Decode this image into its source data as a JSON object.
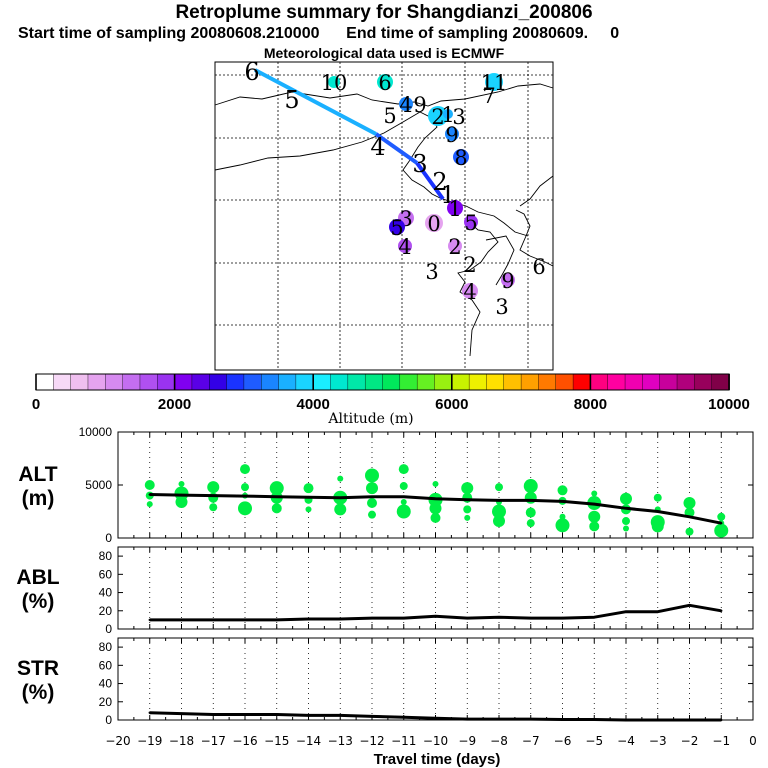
{
  "header": {
    "title": "Retroplume summary for Shangdianzi_200806",
    "start_label": "Start time of sampling 20080608.210000",
    "end_label": "End time of sampling 20080609.",
    "end_suffix": "0",
    "met_label": "Meteorological data used is ECMWF"
  },
  "colorbar": {
    "label": "Altitude (m)",
    "ticks": [
      "0",
      "2000",
      "4000",
      "6000",
      "8000",
      "10000"
    ],
    "colors": [
      "#ffffff",
      "#f7d9f7",
      "#efbfef",
      "#e5a3ef",
      "#d68af0",
      "#c46ef0",
      "#b050f0",
      "#9a33f0",
      "#8000f0",
      "#5a00e6",
      "#3300e6",
      "#1a33ff",
      "#1f5cff",
      "#1a85ff",
      "#1ab0ff",
      "#1ad4ff",
      "#1aeeff",
      "#00e8d0",
      "#00e8a8",
      "#00e884",
      "#00e85c",
      "#33ee33",
      "#66f022",
      "#99f011",
      "#c8f200",
      "#eef000",
      "#ffe000",
      "#ffc000",
      "#ffa000",
      "#ff7a00",
      "#ff5000",
      "#ff0000",
      "#ff0080",
      "#ff00a0",
      "#f000b0",
      "#e000c0",
      "#c8009c",
      "#b0007c",
      "#98005c",
      "#800048"
    ]
  },
  "map": {
    "trajectory_labels": [
      "5",
      "4",
      "3",
      "2",
      "1",
      "6"
    ],
    "cluster_labels": [
      {
        "t": "10",
        "c": "#00e8d0"
      },
      {
        "t": "6",
        "c": "#00e8d0"
      },
      {
        "t": "11",
        "c": "#1ad4ff"
      },
      {
        "t": "4",
        "c": "#1a85ff"
      },
      {
        "t": "9",
        "c": "#1ab0ff"
      },
      {
        "t": "5",
        "c": "#1ad4ff"
      },
      {
        "t": "2",
        "c": "#1ad4ff"
      },
      {
        "t": "1",
        "c": "#1ab0ff"
      },
      {
        "t": "3",
        "c": "#1a85ff"
      },
      {
        "t": "9",
        "c": "#1a85ff"
      },
      {
        "t": "8",
        "c": "#1f5cff"
      },
      {
        "t": "7",
        "c": "#1ad4ff"
      },
      {
        "t": "3",
        "c": "#c46ef0"
      },
      {
        "t": "5",
        "c": "#3300e6"
      },
      {
        "t": "4",
        "c": "#b050f0"
      },
      {
        "t": "0",
        "c": "#e5a3ef"
      },
      {
        "t": "2",
        "c": "#d68af0"
      },
      {
        "t": "1",
        "c": "#8000f0"
      },
      {
        "t": "5",
        "c": "#9a33f0"
      },
      {
        "t": "3",
        "c": "#efbfef"
      },
      {
        "t": "2",
        "c": "#efbfef"
      },
      {
        "t": "9",
        "c": "#c46ef0"
      },
      {
        "t": "6",
        "c": "#f7d9f7"
      },
      {
        "t": "4",
        "c": "#d68af0"
      },
      {
        "t": "3",
        "c": "#efbfef"
      }
    ]
  },
  "chart_data": [
    {
      "type": "line",
      "name": "ALT",
      "ylabel": "ALT",
      "yunit": "(m)",
      "ylim": [
        0,
        10000
      ],
      "yticks": [
        "0",
        "5000",
        "10000"
      ],
      "x": [
        -19,
        -18,
        -17,
        -16,
        -15,
        -14,
        -13,
        -12,
        -11,
        -10,
        -9,
        -8,
        -7,
        -6,
        -5,
        -4,
        -3,
        -2,
        -1
      ],
      "values": [
        4100,
        4050,
        4000,
        3950,
        3900,
        3850,
        3800,
        3900,
        3900,
        3700,
        3600,
        3550,
        3550,
        3450,
        3200,
        2800,
        2500,
        2000,
        1400
      ],
      "cluster_altitudes": [
        [
          3200,
          4000,
          5000
        ],
        [
          3400,
          4200,
          5100
        ],
        [
          2900,
          3800,
          4800
        ],
        [
          2800,
          4000,
          4800,
          6500
        ],
        [
          2800,
          3800,
          4700
        ],
        [
          2700,
          3600,
          4700
        ],
        [
          2700,
          3800,
          5600
        ],
        [
          2200,
          3300,
          4700,
          5900
        ],
        [
          2500,
          3400,
          4900,
          6500
        ],
        [
          1900,
          2800,
          3600,
          5100
        ],
        [
          1900,
          2700,
          3800,
          4700
        ],
        [
          1600,
          2500,
          3400,
          4800
        ],
        [
          1400,
          2400,
          3800,
          4900
        ],
        [
          1200,
          2000,
          3500,
          4500
        ],
        [
          1100,
          2000,
          3300,
          4200
        ],
        [
          900,
          1600,
          2700,
          3700
        ],
        [
          1100,
          1500,
          2700,
          3800
        ],
        [
          600,
          2400,
          3300
        ],
        [
          700,
          1400,
          2000
        ]
      ]
    },
    {
      "type": "line",
      "name": "ABL",
      "ylabel": "ABL",
      "yunit": "(%)",
      "ylim": [
        0,
        90
      ],
      "yticks": [
        "0",
        "20",
        "40",
        "60",
        "80"
      ],
      "x": [
        -19,
        -18,
        -17,
        -16,
        -15,
        -14,
        -13,
        -12,
        -11,
        -10,
        -9,
        -8,
        -7,
        -6,
        -5,
        -4,
        -3,
        -2,
        -1
      ],
      "values": [
        10,
        10,
        10,
        10,
        10,
        11,
        11,
        12,
        12,
        14,
        12,
        13,
        12,
        12,
        13,
        19,
        19,
        26,
        20
      ]
    },
    {
      "type": "line",
      "name": "STR",
      "ylabel": "STR",
      "yunit": "(%)",
      "ylim": [
        0,
        90
      ],
      "yticks": [
        "0",
        "20",
        "40",
        "60",
        "80"
      ],
      "x": [
        -19,
        -18,
        -17,
        -16,
        -15,
        -14,
        -13,
        -12,
        -11,
        -10,
        -9,
        -8,
        -7,
        -6,
        -5,
        -4,
        -3,
        -2,
        -1
      ],
      "values": [
        8,
        7,
        6,
        6,
        6,
        5,
        5,
        4,
        3,
        2,
        1,
        1,
        1,
        0.5,
        0.5,
        0,
        0,
        0,
        0
      ]
    }
  ],
  "xaxis": {
    "xlabel": "Travel time (days)",
    "ticks": [
      "−20",
      "−19",
      "−18",
      "−17",
      "−16",
      "−15",
      "−14",
      "−13",
      "−12",
      "−11",
      "−10",
      "−9",
      "−8",
      "−7",
      "−6",
      "−5",
      "−4",
      "−3",
      "−2",
      "−1",
      "0"
    ]
  },
  "styles": {
    "green": "#00ee44",
    "line": "#000000",
    "traj_light": "#1ab0ff",
    "traj_dark": "#1a33ff"
  }
}
